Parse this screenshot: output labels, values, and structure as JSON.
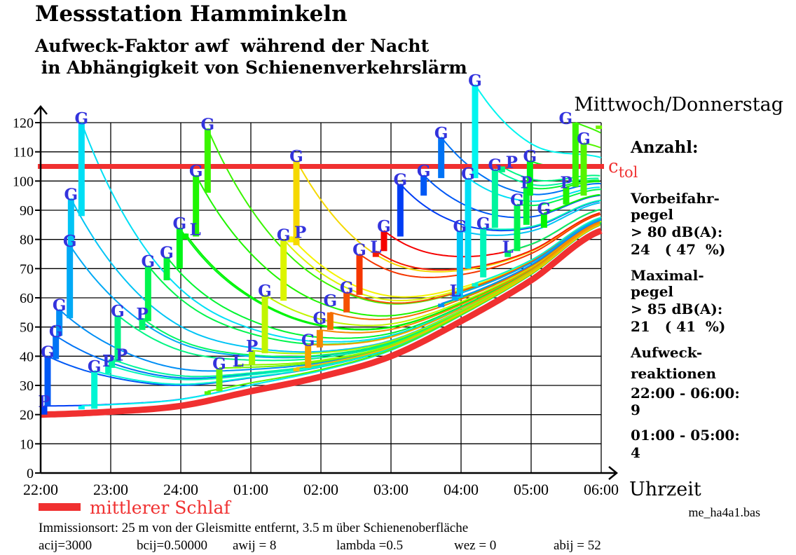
{
  "title": "Messstation Hamminkeln",
  "subtitle_line1": "Aufweck-Faktor awf  während der Nacht",
  "subtitle_line2": " in Abhängigkeit von Schienenverkehrslärm",
  "day_label": "Mittwoch/Donnerstag",
  "side_panel": {
    "heading": "Anzahl:",
    "ctol_main": "c",
    "ctol_sub": "tol",
    "lines": [
      "Vorbeifahr-",
      "pegel",
      "> 80 dB(A):",
      "24   ( 47  %)",
      "Maximal-",
      "pegel",
      "> 85 dB(A):",
      "21   ( 41  %)",
      "Aufweck-",
      "reaktionen",
      "22:00 - 06:00:",
      "9",
      "01:00 - 05:00:",
      "4"
    ]
  },
  "legend": {
    "label": "mittlerer Schlaf",
    "color": "#f03030"
  },
  "file_name": "me_ha4a1.bas",
  "footer_line1": "Immissionsort: 25 m von der Gleismitte entfernt, 3.5 m über Schienenoberfläche",
  "footer_params": [
    "acij=3000",
    "bcij=0.50000",
    "awij = 8",
    "lambda =0.5",
    "wez = 0",
    "abij = 52"
  ],
  "chart_data": {
    "type": "line",
    "xlabel": "Uhrzeit",
    "ylabel": "",
    "x_ticks": [
      "22:00",
      "23:00",
      "24:00",
      "01:00",
      "02:00",
      "03:00",
      "04:00",
      "05:00",
      "06:00"
    ],
    "y_ticks": [
      0,
      10,
      20,
      30,
      40,
      50,
      60,
      70,
      80,
      90,
      100,
      110,
      120
    ],
    "ylim": [
      0,
      120
    ],
    "grid": true,
    "threshold": {
      "name": "ctol",
      "value": 105,
      "color": "#f03030"
    },
    "mean_sleep_curve": {
      "name": "mittlerer Schlaf",
      "x": [
        "22:00",
        "23:00",
        "24:00",
        "01:00",
        "02:00",
        "03:00",
        "04:00",
        "05:00",
        "06:00"
      ],
      "y": [
        20,
        21,
        23,
        28,
        33,
        40,
        52,
        66,
        83
      ]
    },
    "label_color": "#3333dd",
    "events": [
      {
        "time": "22:03",
        "from": 20,
        "to": 23,
        "label": "P"
      },
      {
        "time": "22:06",
        "from": 23,
        "to": 40,
        "label": "G"
      },
      {
        "time": "22:13",
        "from": 39,
        "to": 47,
        "label": "G"
      },
      {
        "time": "22:16",
        "from": 47,
        "to": 56,
        "label": "G"
      },
      {
        "time": "22:25",
        "from": 53,
        "to": 78,
        "label": "G"
      },
      {
        "time": "22:26",
        "from": 78,
        "to": 94,
        "label": "G"
      },
      {
        "time": "22:35",
        "from": 88,
        "to": 120,
        "label": "G"
      },
      {
        "time": "22:35",
        "from": 22,
        "to": 23,
        "label": ""
      },
      {
        "time": "22:46",
        "from": 22,
        "to": 35,
        "label": "G"
      },
      {
        "time": "22:58",
        "from": 34,
        "to": 37,
        "label": "P"
      },
      {
        "time": "23:01",
        "from": 36,
        "to": 39,
        "label": "P"
      },
      {
        "time": "23:06",
        "from": 38,
        "to": 54,
        "label": "G"
      },
      {
        "time": "23:27",
        "from": 49,
        "to": 53,
        "label": "P"
      },
      {
        "time": "23:32",
        "from": 52,
        "to": 71,
        "label": "G"
      },
      {
        "time": "23:48",
        "from": 66,
        "to": 74,
        "label": "G"
      },
      {
        "time": "23:59",
        "from": 70,
        "to": 84,
        "label": "G"
      },
      {
        "time": "00:04",
        "from": 80,
        "to": 82,
        "label": "L"
      },
      {
        "time": "00:13",
        "from": 81,
        "to": 102,
        "label": "G"
      },
      {
        "time": "00:23",
        "from": 96,
        "to": 118,
        "label": "G"
      },
      {
        "time": "00:23",
        "from": 27,
        "to": 28,
        "label": ""
      },
      {
        "time": "00:33",
        "from": 28,
        "to": 36,
        "label": "G"
      },
      {
        "time": "00:49",
        "from": 36,
        "to": 37,
        "label": "L"
      },
      {
        "time": "01:01",
        "from": 37,
        "to": 42,
        "label": "P"
      },
      {
        "time": "01:12",
        "from": 41,
        "to": 61,
        "label": "G"
      },
      {
        "time": "01:28",
        "from": 59,
        "to": 80,
        "label": "G"
      },
      {
        "time": "01:34",
        "from": 79,
        "to": 81,
        "label": "P"
      },
      {
        "time": "01:39",
        "from": 78,
        "to": 107,
        "label": "G"
      },
      {
        "time": "01:39",
        "from": 35,
        "to": 36,
        "label": ""
      },
      {
        "time": "01:49",
        "from": 36,
        "to": 44,
        "label": "G"
      },
      {
        "time": "01:59",
        "from": 43,
        "to": 49,
        "label": "G"
      },
      {
        "time": "02:08",
        "from": 49,
        "to": 55,
        "label": "G"
      },
      {
        "time": "02:22",
        "from": 55,
        "to": 62,
        "label": "G"
      },
      {
        "time": "02:33",
        "from": 61,
        "to": 75,
        "label": "G"
      },
      {
        "time": "02:47",
        "from": 74,
        "to": 76,
        "label": "L"
      },
      {
        "time": "02:54",
        "from": 76,
        "to": 83,
        "label": "G"
      },
      {
        "time": "03:08",
        "from": 81,
        "to": 99,
        "label": "G"
      },
      {
        "time": "03:28",
        "from": 95,
        "to": 102,
        "label": "G"
      },
      {
        "time": "03:43",
        "from": 101,
        "to": 115,
        "label": "G"
      },
      {
        "time": "03:43",
        "from": 57,
        "to": 58,
        "label": ""
      },
      {
        "time": "03:55",
        "from": 59,
        "to": 61,
        "label": "L"
      },
      {
        "time": "03:59",
        "from": 60,
        "to": 83,
        "label": "G"
      },
      {
        "time": "04:06",
        "from": 70,
        "to": 101,
        "label": "G"
      },
      {
        "time": "04:12",
        "from": 101,
        "to": 133,
        "label": "G"
      },
      {
        "time": "04:12",
        "from": 64,
        "to": 65,
        "label": ""
      },
      {
        "time": "04:19",
        "from": 67,
        "to": 84,
        "label": "G"
      },
      {
        "time": "04:29",
        "from": 84,
        "to": 104,
        "label": "G"
      },
      {
        "time": "04:35",
        "from": 103,
        "to": 105,
        "label": "P"
      },
      {
        "time": "04:40",
        "from": 74,
        "to": 76,
        "label": "L"
      },
      {
        "time": "04:48",
        "from": 76,
        "to": 92,
        "label": "G"
      },
      {
        "time": "04:56",
        "from": 85,
        "to": 98,
        "label": "P"
      },
      {
        "time": "04:59",
        "from": 95,
        "to": 107,
        "label": "G"
      },
      {
        "time": "05:11",
        "from": 84,
        "to": 89,
        "label": "G"
      },
      {
        "time": "05:30",
        "from": 92,
        "to": 98,
        "label": "P"
      },
      {
        "time": "05:38",
        "from": 98,
        "to": 120,
        "label": "G"
      },
      {
        "time": "05:45",
        "from": 95,
        "to": 113,
        "label": "G"
      },
      {
        "time": "05:58",
        "from": 118,
        "to": 119,
        "label": ""
      }
    ]
  }
}
